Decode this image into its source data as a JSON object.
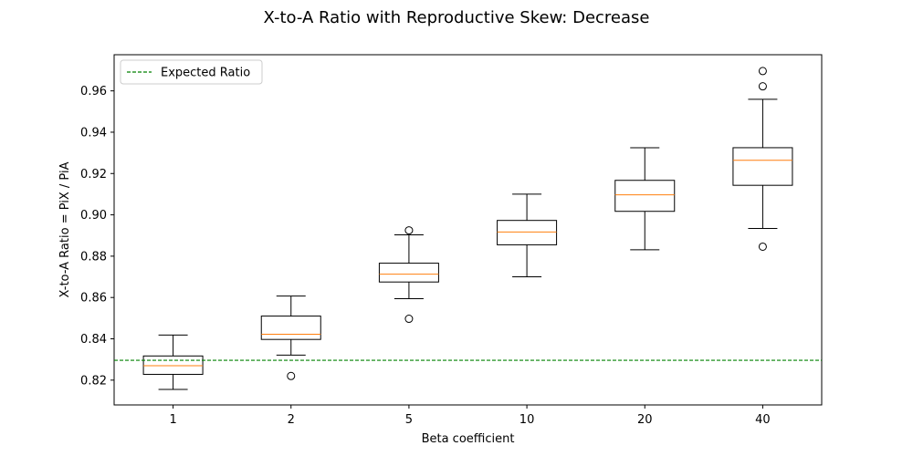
{
  "colors": {
    "box": "#000000",
    "median": "#ff7f0e",
    "reference_line": "#008000",
    "legend_border": "#cccccc",
    "background": "#ffffff"
  },
  "chart_data": {
    "type": "box",
    "title": "X-to-A Ratio with Reproductive Skew: Decrease",
    "xlabel": "Beta coefficient",
    "ylabel": "X-to-A Ratio = PiX / PiA",
    "categories": [
      "1",
      "2",
      "5",
      "10",
      "20",
      "40"
    ],
    "ylim": [
      0.808,
      0.9775
    ],
    "yticks": [
      0.82,
      0.84,
      0.86,
      0.88,
      0.9,
      0.92,
      0.94,
      0.96
    ],
    "ytick_labels": [
      "0.82",
      "0.84",
      "0.86",
      "0.88",
      "0.90",
      "0.92",
      "0.94",
      "0.96"
    ],
    "boxes": [
      {
        "category": "1",
        "whisker_low": 0.8155,
        "q1": 0.8228,
        "median": 0.827,
        "q3": 0.8317,
        "whisker_high": 0.8418,
        "outliers": []
      },
      {
        "category": "2",
        "whisker_low": 0.8321,
        "q1": 0.8397,
        "median": 0.8422,
        "q3": 0.851,
        "whisker_high": 0.8607,
        "outliers": [
          0.822
        ]
      },
      {
        "category": "5",
        "whisker_low": 0.8594,
        "q1": 0.8675,
        "median": 0.8713,
        "q3": 0.8766,
        "whisker_high": 0.8903,
        "outliers": [
          0.8925,
          0.8497
        ]
      },
      {
        "category": "10",
        "whisker_low": 0.87,
        "q1": 0.8855,
        "median": 0.8917,
        "q3": 0.8973,
        "whisker_high": 0.91,
        "outliers": []
      },
      {
        "category": "20",
        "whisker_low": 0.8831,
        "q1": 0.9017,
        "median": 0.9097,
        "q3": 0.9167,
        "whisker_high": 0.9325,
        "outliers": []
      },
      {
        "category": "40",
        "whisker_low": 0.8934,
        "q1": 0.9143,
        "median": 0.9264,
        "q3": 0.9325,
        "whisker_high": 0.9559,
        "outliers": [
          0.9696,
          0.9622,
          0.8846
        ]
      }
    ],
    "reference_line": {
      "label": "Expected Ratio",
      "value": 0.8296,
      "style": "dashed"
    },
    "legend": {
      "entries": [
        "Expected Ratio"
      ],
      "location": "upper left"
    },
    "grid": false
  }
}
